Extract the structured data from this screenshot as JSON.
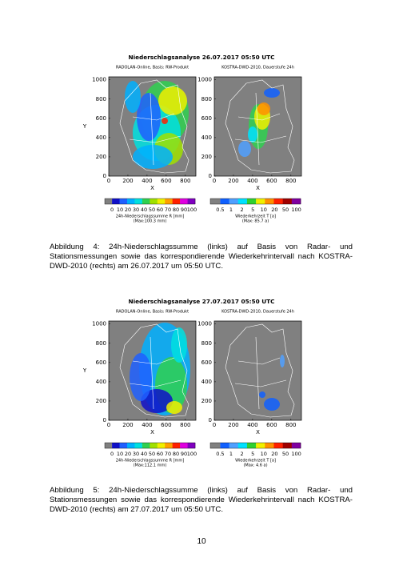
{
  "figures": [
    {
      "title": "Niederschlagsanalyse 26.07.2017 05:50 UTC",
      "panels": [
        {
          "subtitle": "RADOLAN-Online, Basis: RW-Produkt",
          "x_label": "X",
          "y_label": "Y",
          "x_ticks": [
            0,
            200,
            400,
            600,
            800
          ],
          "y_ticks": [
            0,
            200,
            400,
            600,
            800,
            1000
          ],
          "colorbar_ticks": [
            0,
            10,
            20,
            30,
            40,
            50,
            60,
            70,
            80,
            90,
            100
          ],
          "colorbar_label": "24h-Niederschlagssumme R [mm]",
          "colorbar_note": "(Max:100.3 mm)"
        },
        {
          "subtitle": "KOSTRA-DWD-2010, Dauerstufe 24h",
          "x_label": "X",
          "x_ticks": [
            0,
            200,
            400,
            600,
            800
          ],
          "y_ticks": [
            0,
            200,
            400,
            600,
            800,
            1000
          ],
          "colorbar_ticks": [
            0.5,
            1,
            2,
            5,
            10,
            20,
            50,
            100
          ],
          "colorbar_label": "Wiederkehrzeit T [a]",
          "colorbar_note": "(Max: 85.7 a)"
        }
      ],
      "caption": "Abbildung 4: 24h-Niederschlagssumme (links) auf Basis von Radar- und Stationsmessungen sowie das korrespondierende Wiederkehrintervall nach KOSTRA-DWD-2010 (rechts) am 26.07.2017 um 05:50 UTC."
    },
    {
      "title": "Niederschlagsanalyse 27.07.2017 05:50 UTC",
      "panels": [
        {
          "subtitle": "RADOLAN-Online, Basis: RW-Produkt",
          "x_label": "X",
          "y_label": "Y",
          "x_ticks": [
            0,
            200,
            400,
            600,
            800
          ],
          "y_ticks": [
            0,
            200,
            400,
            600,
            800,
            1000
          ],
          "colorbar_ticks": [
            0,
            10,
            20,
            30,
            40,
            50,
            60,
            70,
            80,
            90,
            100
          ],
          "colorbar_label": "24h-Niederschlagssumme R [mm]",
          "colorbar_note": "(Max:112.1 mm)"
        },
        {
          "subtitle": "KOSTRA-DWD-2010, Dauerstufe 24h",
          "x_label": "X",
          "x_ticks": [
            0,
            200,
            400,
            600,
            800
          ],
          "y_ticks": [
            0,
            200,
            400,
            600,
            800,
            1000
          ],
          "colorbar_ticks": [
            0.5,
            1,
            2,
            5,
            10,
            20,
            50,
            100
          ],
          "colorbar_label": "Wiederkehrzeit T [a]",
          "colorbar_note": "(Max: 4.6 a)"
        }
      ],
      "caption": "Abbildung 5: 24h-Niederschlagssumme (links) auf Basis von Radar- und Stationsmessungen sowie das korrespondierende Wiederkehrintervall nach KOSTRA-DWD-2010 (rechts) am 27.07.2017 um 05:50 UTC."
    }
  ],
  "page_number": "10"
}
